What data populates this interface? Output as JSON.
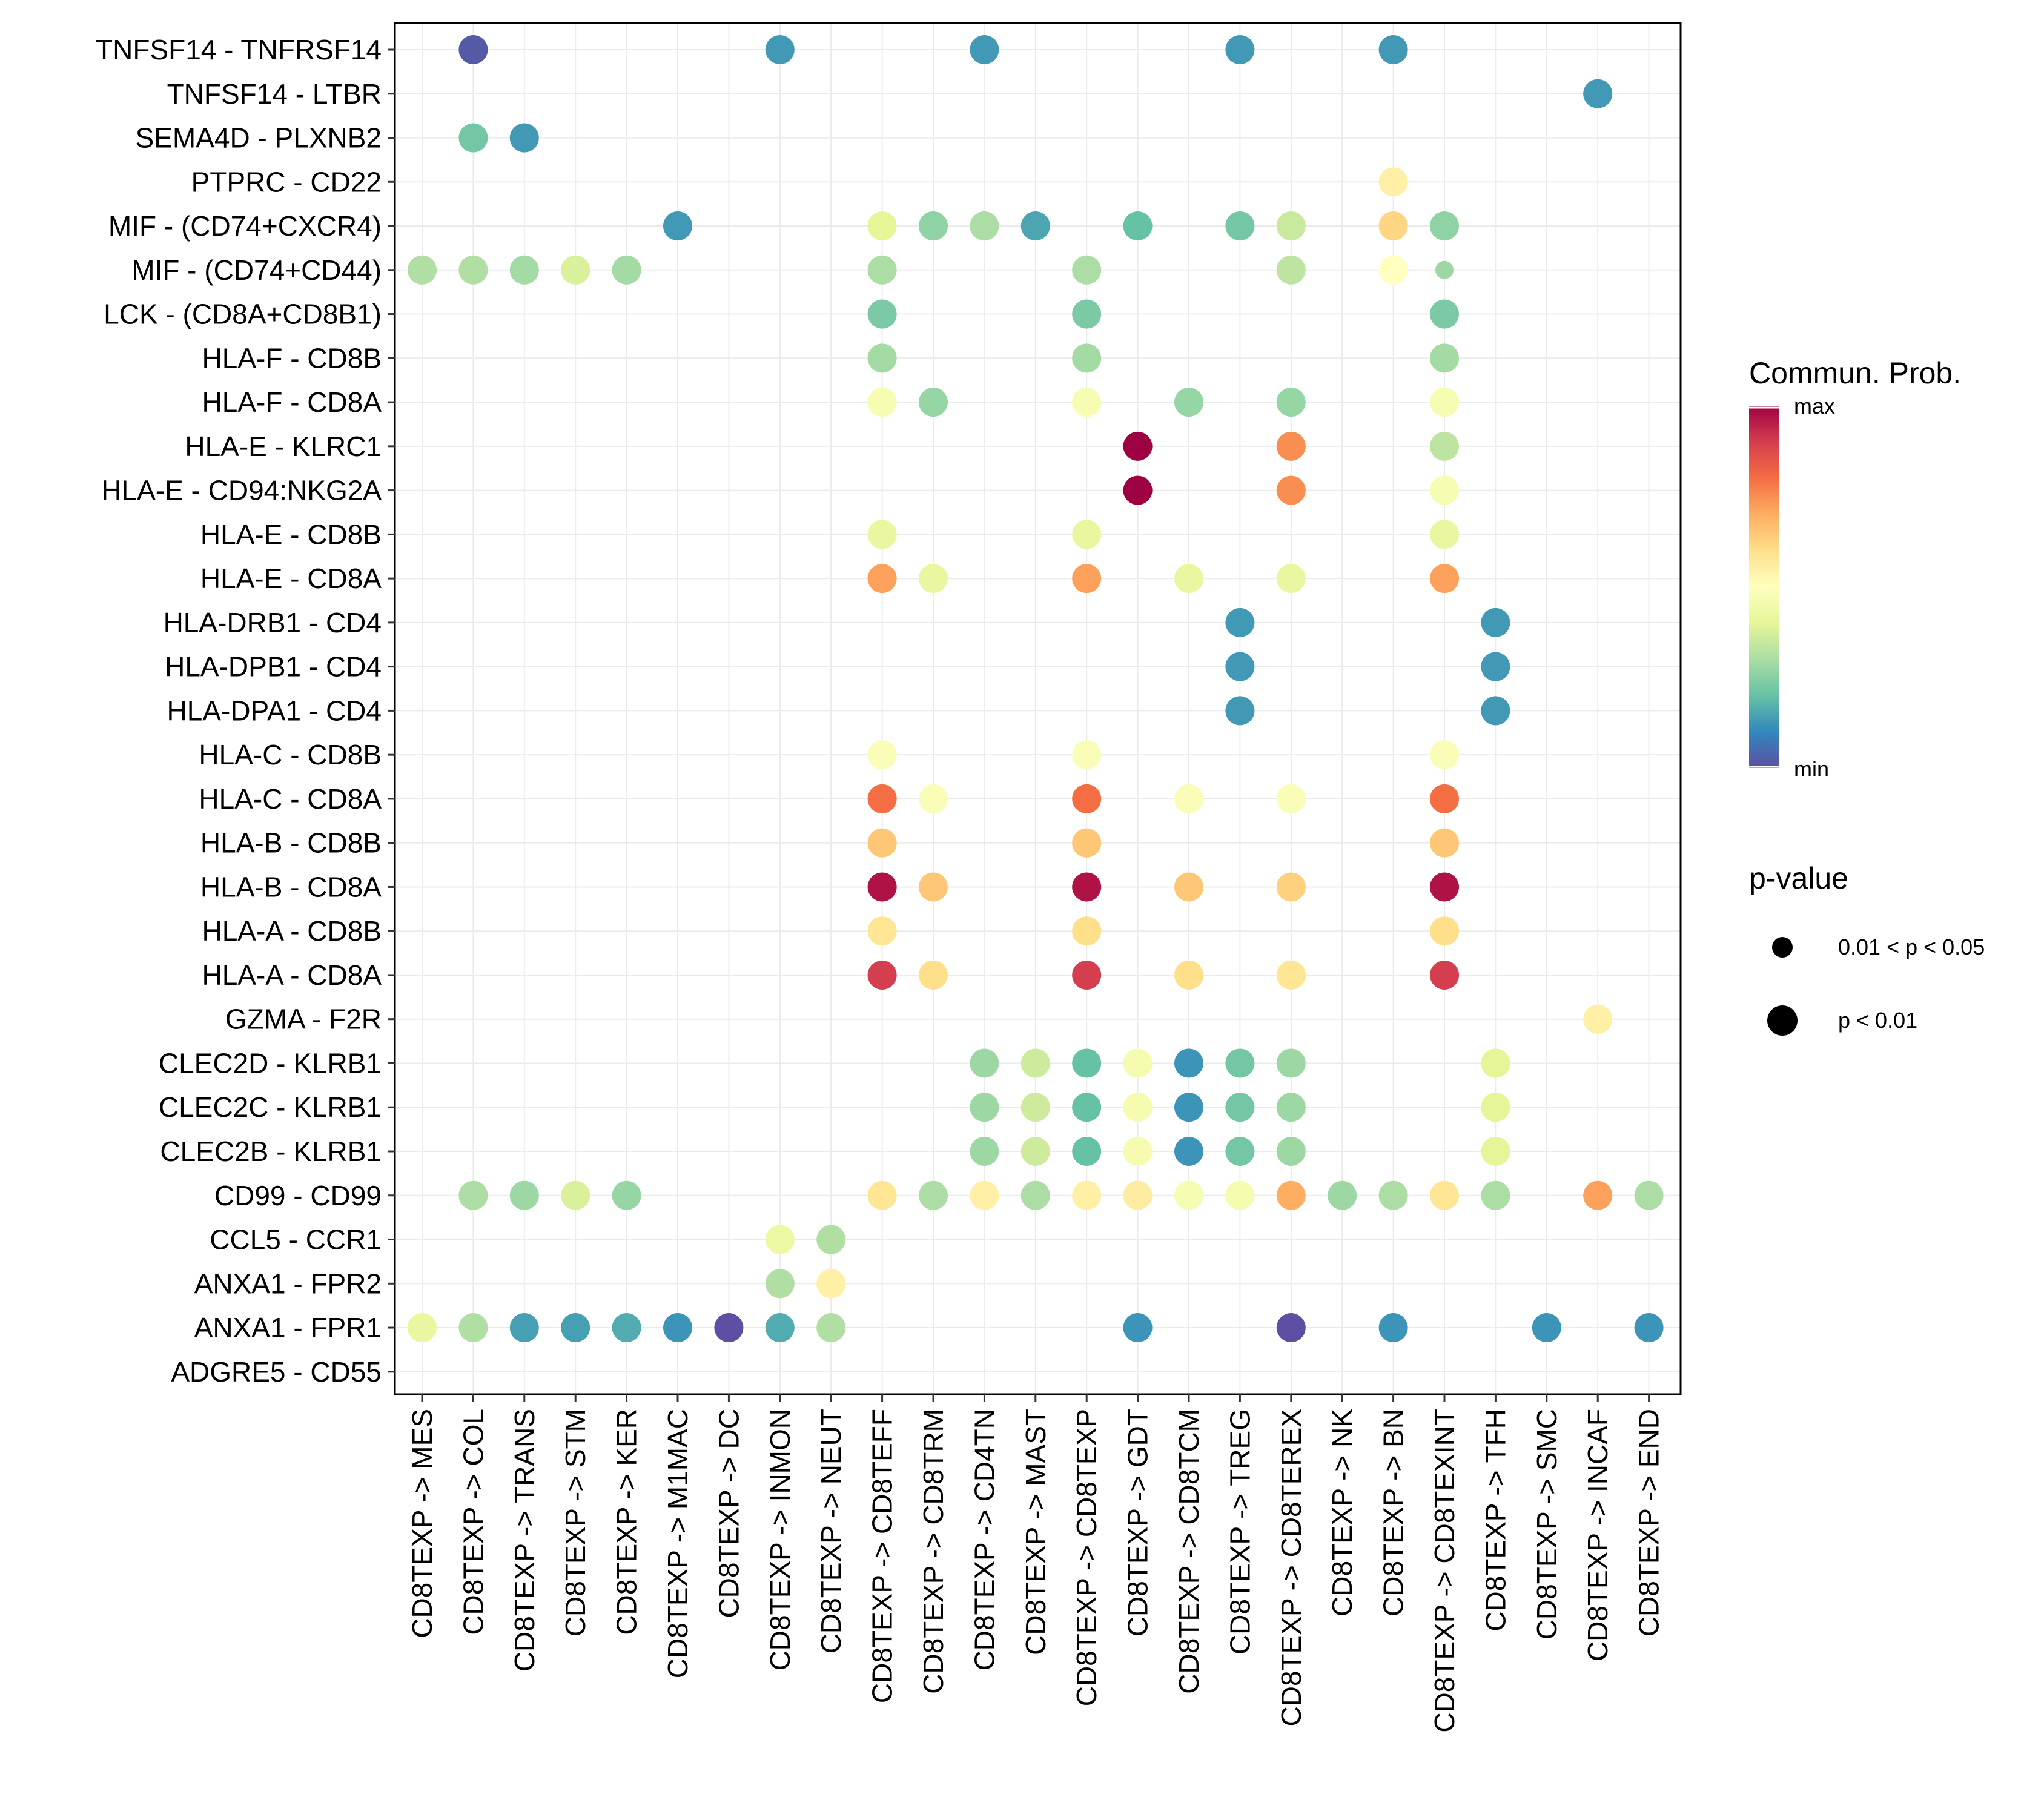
{
  "chart_data": {
    "type": "dot",
    "title": "",
    "xlabel": "",
    "ylabel": "",
    "grid": true,
    "colormap": [
      "#5E4FA2",
      "#3288BD",
      "#66C2A5",
      "#ABDDA4",
      "#E6F598",
      "#FFFFBF",
      "#FEE08B",
      "#FDAE61",
      "#F46D43",
      "#D53E4F",
      "#9E0142"
    ],
    "categories_x": [
      "CD8TEXP -> MES",
      "CD8TEXP -> COL",
      "CD8TEXP -> TRANS",
      "CD8TEXP -> STM",
      "CD8TEXP -> KER",
      "CD8TEXP -> M1MAC",
      "CD8TEXP -> DC",
      "CD8TEXP -> INMON",
      "CD8TEXP -> NEUT",
      "CD8TEXP -> CD8TEFF",
      "CD8TEXP -> CD8TRM",
      "CD8TEXP -> CD4TN",
      "CD8TEXP -> MAST",
      "CD8TEXP -> CD8TEXP",
      "CD8TEXP -> GDT",
      "CD8TEXP -> CD8TCM",
      "CD8TEXP -> TREG",
      "CD8TEXP -> CD8TEREX",
      "CD8TEXP -> NK",
      "CD8TEXP -> BN",
      "CD8TEXP -> CD8TEXINT",
      "CD8TEXP -> TFH",
      "CD8TEXP -> SMC",
      "CD8TEXP -> INCAF",
      "CD8TEXP -> END"
    ],
    "categories_y": [
      "TNFSF14 - TNFRSF14",
      "TNFSF14 - LTBR",
      "SEMA4D - PLXNB2",
      "PTPRC - CD22",
      "MIF - (CD74+CXCR4)",
      "MIF - (CD74+CD44)",
      "LCK - (CD8A+CD8B1)",
      "HLA-F - CD8B",
      "HLA-F - CD8A",
      "HLA-E - KLRC1",
      "HLA-E - CD94:NKG2A",
      "HLA-E - CD8B",
      "HLA-E - CD8A",
      "HLA-DRB1 - CD4",
      "HLA-DPB1 - CD4",
      "HLA-DPA1 - CD4",
      "HLA-C - CD8B",
      "HLA-C - CD8A",
      "HLA-B - CD8B",
      "HLA-B - CD8A",
      "HLA-A - CD8B",
      "HLA-A - CD8A",
      "GZMA - F2R",
      "CLEC2D - KLRB1",
      "CLEC2C - KLRB1",
      "CLEC2B - KLRB1",
      "CD99 - CD99",
      "CCL5 - CCR1",
      "ANXA1 - FPR2",
      "ANXA1 - FPR1",
      "ADGRE5 - CD55"
    ],
    "points": [
      {
        "x": 1,
        "y": 0,
        "prob": 0.02,
        "sig": "p < 0.01"
      },
      {
        "x": 7,
        "y": 0,
        "prob": 0.13,
        "sig": "p < 0.01"
      },
      {
        "x": 11,
        "y": 0,
        "prob": 0.13,
        "sig": "p < 0.01"
      },
      {
        "x": 16,
        "y": 0,
        "prob": 0.13,
        "sig": "p < 0.01"
      },
      {
        "x": 19,
        "y": 0,
        "prob": 0.13,
        "sig": "p < 0.01"
      },
      {
        "x": 23,
        "y": 1,
        "prob": 0.13,
        "sig": "p < 0.01"
      },
      {
        "x": 1,
        "y": 2,
        "prob": 0.22,
        "sig": "p < 0.01"
      },
      {
        "x": 2,
        "y": 2,
        "prob": 0.13,
        "sig": "p < 0.01"
      },
      {
        "x": 19,
        "y": 3,
        "prob": 0.55,
        "sig": "p < 0.01"
      },
      {
        "x": 5,
        "y": 4,
        "prob": 0.13,
        "sig": "p < 0.01"
      },
      {
        "x": 9,
        "y": 4,
        "prob": 0.4,
        "sig": "p < 0.01"
      },
      {
        "x": 10,
        "y": 4,
        "prob": 0.26,
        "sig": "p < 0.01"
      },
      {
        "x": 11,
        "y": 4,
        "prob": 0.3,
        "sig": "p < 0.01"
      },
      {
        "x": 12,
        "y": 4,
        "prob": 0.15,
        "sig": "p < 0.01"
      },
      {
        "x": 14,
        "y": 4,
        "prob": 0.2,
        "sig": "p < 0.01"
      },
      {
        "x": 16,
        "y": 4,
        "prob": 0.22,
        "sig": "p < 0.01"
      },
      {
        "x": 17,
        "y": 4,
        "prob": 0.35,
        "sig": "p < 0.01"
      },
      {
        "x": 19,
        "y": 4,
        "prob": 0.62,
        "sig": "p < 0.01"
      },
      {
        "x": 20,
        "y": 4,
        "prob": 0.26,
        "sig": "p < 0.01"
      },
      {
        "x": 0,
        "y": 5,
        "prob": 0.31,
        "sig": "p < 0.01"
      },
      {
        "x": 1,
        "y": 5,
        "prob": 0.31,
        "sig": "p < 0.01"
      },
      {
        "x": 2,
        "y": 5,
        "prob": 0.29,
        "sig": "p < 0.01"
      },
      {
        "x": 3,
        "y": 5,
        "prob": 0.38,
        "sig": "p < 0.01"
      },
      {
        "x": 4,
        "y": 5,
        "prob": 0.29,
        "sig": "p < 0.01"
      },
      {
        "x": 9,
        "y": 5,
        "prob": 0.3,
        "sig": "p < 0.01"
      },
      {
        "x": 13,
        "y": 5,
        "prob": 0.3,
        "sig": "p < 0.01"
      },
      {
        "x": 17,
        "y": 5,
        "prob": 0.33,
        "sig": "p < 0.01"
      },
      {
        "x": 19,
        "y": 5,
        "prob": 0.5,
        "sig": "p < 0.01"
      },
      {
        "x": 20,
        "y": 5,
        "prob": 0.28,
        "sig": "0.01 < p < 0.05"
      },
      {
        "x": 9,
        "y": 6,
        "prob": 0.23,
        "sig": "p < 0.01"
      },
      {
        "x": 13,
        "y": 6,
        "prob": 0.23,
        "sig": "p < 0.01"
      },
      {
        "x": 20,
        "y": 6,
        "prob": 0.23,
        "sig": "p < 0.01"
      },
      {
        "x": 9,
        "y": 7,
        "prob": 0.29,
        "sig": "p < 0.01"
      },
      {
        "x": 13,
        "y": 7,
        "prob": 0.29,
        "sig": "p < 0.01"
      },
      {
        "x": 20,
        "y": 7,
        "prob": 0.29,
        "sig": "p < 0.01"
      },
      {
        "x": 9,
        "y": 8,
        "prob": 0.47,
        "sig": "p < 0.01"
      },
      {
        "x": 10,
        "y": 8,
        "prob": 0.27,
        "sig": "p < 0.01"
      },
      {
        "x": 13,
        "y": 8,
        "prob": 0.47,
        "sig": "p < 0.01"
      },
      {
        "x": 15,
        "y": 8,
        "prob": 0.27,
        "sig": "p < 0.01"
      },
      {
        "x": 17,
        "y": 8,
        "prob": 0.27,
        "sig": "p < 0.01"
      },
      {
        "x": 20,
        "y": 8,
        "prob": 0.47,
        "sig": "p < 0.01"
      },
      {
        "x": 14,
        "y": 9,
        "prob": 1.0,
        "sig": "p < 0.01"
      },
      {
        "x": 17,
        "y": 9,
        "prob": 0.75,
        "sig": "p < 0.01"
      },
      {
        "x": 20,
        "y": 9,
        "prob": 0.33,
        "sig": "p < 0.01"
      },
      {
        "x": 14,
        "y": 10,
        "prob": 1.0,
        "sig": "p < 0.01"
      },
      {
        "x": 17,
        "y": 10,
        "prob": 0.75,
        "sig": "p < 0.01"
      },
      {
        "x": 20,
        "y": 10,
        "prob": 0.47,
        "sig": "p < 0.01"
      },
      {
        "x": 9,
        "y": 11,
        "prob": 0.42,
        "sig": "p < 0.01"
      },
      {
        "x": 13,
        "y": 11,
        "prob": 0.42,
        "sig": "p < 0.01"
      },
      {
        "x": 20,
        "y": 11,
        "prob": 0.42,
        "sig": "p < 0.01"
      },
      {
        "x": 9,
        "y": 12,
        "prob": 0.72,
        "sig": "p < 0.01"
      },
      {
        "x": 10,
        "y": 12,
        "prob": 0.42,
        "sig": "p < 0.01"
      },
      {
        "x": 13,
        "y": 12,
        "prob": 0.72,
        "sig": "p < 0.01"
      },
      {
        "x": 15,
        "y": 12,
        "prob": 0.42,
        "sig": "p < 0.01"
      },
      {
        "x": 17,
        "y": 12,
        "prob": 0.42,
        "sig": "p < 0.01"
      },
      {
        "x": 20,
        "y": 12,
        "prob": 0.72,
        "sig": "p < 0.01"
      },
      {
        "x": 16,
        "y": 13,
        "prob": 0.13,
        "sig": "p < 0.01"
      },
      {
        "x": 21,
        "y": 13,
        "prob": 0.13,
        "sig": "p < 0.01"
      },
      {
        "x": 16,
        "y": 14,
        "prob": 0.13,
        "sig": "p < 0.01"
      },
      {
        "x": 21,
        "y": 14,
        "prob": 0.13,
        "sig": "p < 0.01"
      },
      {
        "x": 16,
        "y": 15,
        "prob": 0.13,
        "sig": "p < 0.01"
      },
      {
        "x": 21,
        "y": 15,
        "prob": 0.13,
        "sig": "p < 0.01"
      },
      {
        "x": 9,
        "y": 16,
        "prob": 0.48,
        "sig": "p < 0.01"
      },
      {
        "x": 13,
        "y": 16,
        "prob": 0.48,
        "sig": "p < 0.01"
      },
      {
        "x": 20,
        "y": 16,
        "prob": 0.48,
        "sig": "p < 0.01"
      },
      {
        "x": 9,
        "y": 17,
        "prob": 0.8,
        "sig": "p < 0.01"
      },
      {
        "x": 10,
        "y": 17,
        "prob": 0.48,
        "sig": "p < 0.01"
      },
      {
        "x": 13,
        "y": 17,
        "prob": 0.8,
        "sig": "p < 0.01"
      },
      {
        "x": 15,
        "y": 17,
        "prob": 0.48,
        "sig": "p < 0.01"
      },
      {
        "x": 17,
        "y": 17,
        "prob": 0.48,
        "sig": "p < 0.01"
      },
      {
        "x": 20,
        "y": 17,
        "prob": 0.8,
        "sig": "p < 0.01"
      },
      {
        "x": 9,
        "y": 18,
        "prob": 0.65,
        "sig": "p < 0.01"
      },
      {
        "x": 13,
        "y": 18,
        "prob": 0.65,
        "sig": "p < 0.01"
      },
      {
        "x": 20,
        "y": 18,
        "prob": 0.65,
        "sig": "p < 0.01"
      },
      {
        "x": 9,
        "y": 19,
        "prob": 0.97,
        "sig": "p < 0.01"
      },
      {
        "x": 10,
        "y": 19,
        "prob": 0.65,
        "sig": "p < 0.01"
      },
      {
        "x": 13,
        "y": 19,
        "prob": 0.97,
        "sig": "p < 0.01"
      },
      {
        "x": 15,
        "y": 19,
        "prob": 0.65,
        "sig": "p < 0.01"
      },
      {
        "x": 17,
        "y": 19,
        "prob": 0.63,
        "sig": "p < 0.01"
      },
      {
        "x": 20,
        "y": 19,
        "prob": 0.97,
        "sig": "p < 0.01"
      },
      {
        "x": 9,
        "y": 20,
        "prob": 0.58,
        "sig": "p < 0.01"
      },
      {
        "x": 13,
        "y": 20,
        "prob": 0.6,
        "sig": "p < 0.01"
      },
      {
        "x": 20,
        "y": 20,
        "prob": 0.6,
        "sig": "p < 0.01"
      },
      {
        "x": 9,
        "y": 21,
        "prob": 0.9,
        "sig": "p < 0.01"
      },
      {
        "x": 10,
        "y": 21,
        "prob": 0.6,
        "sig": "p < 0.01"
      },
      {
        "x": 13,
        "y": 21,
        "prob": 0.9,
        "sig": "p < 0.01"
      },
      {
        "x": 15,
        "y": 21,
        "prob": 0.6,
        "sig": "p < 0.01"
      },
      {
        "x": 17,
        "y": 21,
        "prob": 0.58,
        "sig": "p < 0.01"
      },
      {
        "x": 20,
        "y": 21,
        "prob": 0.9,
        "sig": "p < 0.01"
      },
      {
        "x": 23,
        "y": 22,
        "prob": 0.55,
        "sig": "p < 0.01"
      },
      {
        "x": 11,
        "y": 23,
        "prob": 0.28,
        "sig": "p < 0.01"
      },
      {
        "x": 12,
        "y": 23,
        "prob": 0.36,
        "sig": "p < 0.01"
      },
      {
        "x": 13,
        "y": 23,
        "prob": 0.2,
        "sig": "p < 0.01"
      },
      {
        "x": 14,
        "y": 23,
        "prob": 0.46,
        "sig": "p < 0.01"
      },
      {
        "x": 15,
        "y": 23,
        "prob": 0.12,
        "sig": "p < 0.01"
      },
      {
        "x": 16,
        "y": 23,
        "prob": 0.22,
        "sig": "p < 0.01"
      },
      {
        "x": 17,
        "y": 23,
        "prob": 0.28,
        "sig": "p < 0.01"
      },
      {
        "x": 21,
        "y": 23,
        "prob": 0.4,
        "sig": "p < 0.01"
      },
      {
        "x": 11,
        "y": 24,
        "prob": 0.28,
        "sig": "p < 0.01"
      },
      {
        "x": 12,
        "y": 24,
        "prob": 0.36,
        "sig": "p < 0.01"
      },
      {
        "x": 13,
        "y": 24,
        "prob": 0.2,
        "sig": "p < 0.01"
      },
      {
        "x": 14,
        "y": 24,
        "prob": 0.46,
        "sig": "p < 0.01"
      },
      {
        "x": 15,
        "y": 24,
        "prob": 0.12,
        "sig": "p < 0.01"
      },
      {
        "x": 16,
        "y": 24,
        "prob": 0.22,
        "sig": "p < 0.01"
      },
      {
        "x": 17,
        "y": 24,
        "prob": 0.28,
        "sig": "p < 0.01"
      },
      {
        "x": 21,
        "y": 24,
        "prob": 0.4,
        "sig": "p < 0.01"
      },
      {
        "x": 11,
        "y": 25,
        "prob": 0.28,
        "sig": "p < 0.01"
      },
      {
        "x": 12,
        "y": 25,
        "prob": 0.36,
        "sig": "p < 0.01"
      },
      {
        "x": 13,
        "y": 25,
        "prob": 0.2,
        "sig": "p < 0.01"
      },
      {
        "x": 14,
        "y": 25,
        "prob": 0.46,
        "sig": "p < 0.01"
      },
      {
        "x": 15,
        "y": 25,
        "prob": 0.12,
        "sig": "p < 0.01"
      },
      {
        "x": 16,
        "y": 25,
        "prob": 0.22,
        "sig": "p < 0.01"
      },
      {
        "x": 17,
        "y": 25,
        "prob": 0.28,
        "sig": "p < 0.01"
      },
      {
        "x": 21,
        "y": 25,
        "prob": 0.4,
        "sig": "p < 0.01"
      },
      {
        "x": 1,
        "y": 26,
        "prob": 0.3,
        "sig": "p < 0.01"
      },
      {
        "x": 2,
        "y": 26,
        "prob": 0.28,
        "sig": "p < 0.01"
      },
      {
        "x": 3,
        "y": 26,
        "prob": 0.38,
        "sig": "p < 0.01"
      },
      {
        "x": 4,
        "y": 26,
        "prob": 0.27,
        "sig": "p < 0.01"
      },
      {
        "x": 9,
        "y": 26,
        "prob": 0.58,
        "sig": "p < 0.01"
      },
      {
        "x": 10,
        "y": 26,
        "prob": 0.3,
        "sig": "p < 0.01"
      },
      {
        "x": 11,
        "y": 26,
        "prob": 0.55,
        "sig": "p < 0.01"
      },
      {
        "x": 12,
        "y": 26,
        "prob": 0.3,
        "sig": "p < 0.01"
      },
      {
        "x": 13,
        "y": 26,
        "prob": 0.55,
        "sig": "p < 0.01"
      },
      {
        "x": 14,
        "y": 26,
        "prob": 0.56,
        "sig": "p < 0.01"
      },
      {
        "x": 15,
        "y": 26,
        "prob": 0.47,
        "sig": "p < 0.01"
      },
      {
        "x": 16,
        "y": 26,
        "prob": 0.46,
        "sig": "p < 0.01"
      },
      {
        "x": 17,
        "y": 26,
        "prob": 0.7,
        "sig": "p < 0.01"
      },
      {
        "x": 18,
        "y": 26,
        "prob": 0.28,
        "sig": "p < 0.01"
      },
      {
        "x": 19,
        "y": 26,
        "prob": 0.3,
        "sig": "p < 0.01"
      },
      {
        "x": 20,
        "y": 26,
        "prob": 0.58,
        "sig": "p < 0.01"
      },
      {
        "x": 21,
        "y": 26,
        "prob": 0.3,
        "sig": "p < 0.01"
      },
      {
        "x": 23,
        "y": 26,
        "prob": 0.72,
        "sig": "p < 0.01"
      },
      {
        "x": 24,
        "y": 26,
        "prob": 0.3,
        "sig": "p < 0.01"
      },
      {
        "x": 7,
        "y": 27,
        "prob": 0.43,
        "sig": "p < 0.01"
      },
      {
        "x": 8,
        "y": 27,
        "prob": 0.31,
        "sig": "p < 0.01"
      },
      {
        "x": 7,
        "y": 28,
        "prob": 0.31,
        "sig": "p < 0.01"
      },
      {
        "x": 8,
        "y": 28,
        "prob": 0.55,
        "sig": "p < 0.01"
      },
      {
        "x": 0,
        "y": 29,
        "prob": 0.42,
        "sig": "p < 0.01"
      },
      {
        "x": 1,
        "y": 29,
        "prob": 0.31,
        "sig": "p < 0.01"
      },
      {
        "x": 2,
        "y": 29,
        "prob": 0.14,
        "sig": "p < 0.01"
      },
      {
        "x": 3,
        "y": 29,
        "prob": 0.14,
        "sig": "p < 0.01"
      },
      {
        "x": 4,
        "y": 29,
        "prob": 0.16,
        "sig": "p < 0.01"
      },
      {
        "x": 5,
        "y": 29,
        "prob": 0.12,
        "sig": "p < 0.01"
      },
      {
        "x": 6,
        "y": 29,
        "prob": 0.0,
        "sig": "p < 0.01"
      },
      {
        "x": 7,
        "y": 29,
        "prob": 0.16,
        "sig": "p < 0.01"
      },
      {
        "x": 8,
        "y": 29,
        "prob": 0.31,
        "sig": "p < 0.01"
      },
      {
        "x": 14,
        "y": 29,
        "prob": 0.12,
        "sig": "p < 0.01"
      },
      {
        "x": 17,
        "y": 29,
        "prob": 0.0,
        "sig": "p < 0.01"
      },
      {
        "x": 19,
        "y": 29,
        "prob": 0.12,
        "sig": "p < 0.01"
      },
      {
        "x": 22,
        "y": 29,
        "prob": 0.12,
        "sig": "p < 0.01"
      },
      {
        "x": 24,
        "y": 29,
        "prob": 0.12,
        "sig": "p < 0.01"
      }
    ],
    "legend": {
      "color_title": "Commun. Prob.",
      "color_max_label": "max",
      "color_min_label": "min",
      "size_title": "p-value",
      "size_levels": [
        "0.01 < p < 0.05",
        "p < 0.01"
      ]
    }
  }
}
